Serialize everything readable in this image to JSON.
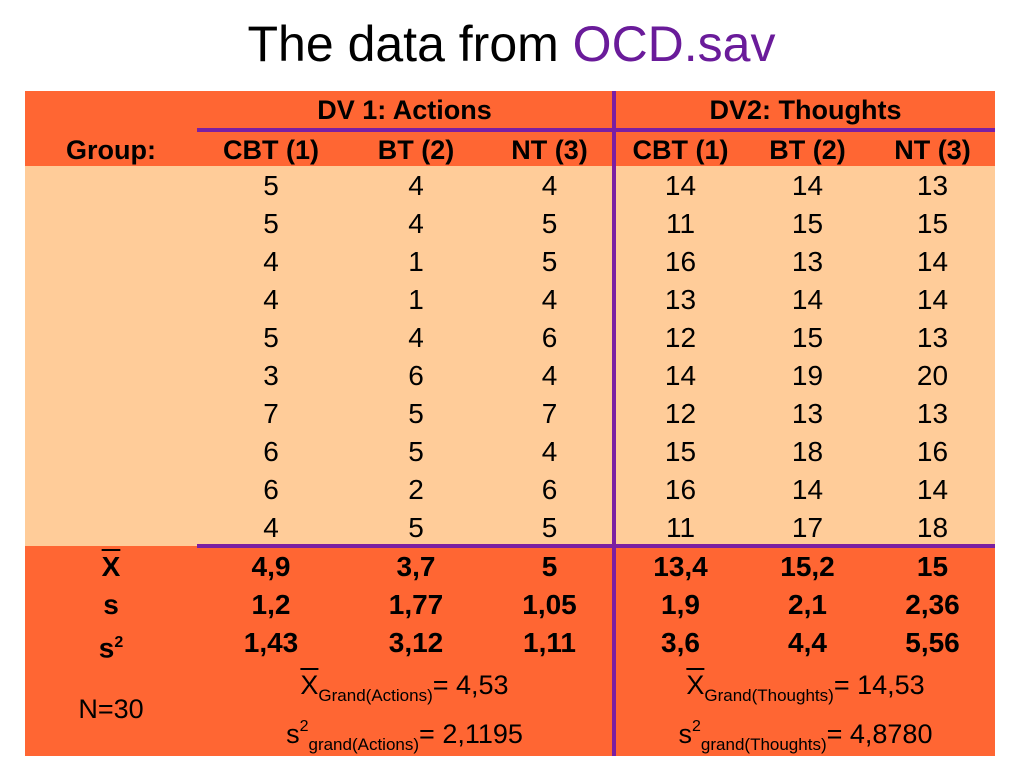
{
  "title": {
    "main": "The data from ",
    "accent": "OCD.sav"
  },
  "headers": {
    "group_label": "Group:",
    "dv1": "DV 1: Actions",
    "dv2": "DV2: Thoughts",
    "columns": [
      "CBT (1)",
      "BT (2)",
      "NT (3)",
      "CBT (1)",
      "BT (2)",
      "NT (3)"
    ]
  },
  "rows": [
    [
      "5",
      "4",
      "4",
      "14",
      "14",
      "13"
    ],
    [
      "5",
      "4",
      "5",
      "11",
      "15",
      "15"
    ],
    [
      "4",
      "1",
      "5",
      "16",
      "13",
      "14"
    ],
    [
      "4",
      "1",
      "4",
      "13",
      "14",
      "14"
    ],
    [
      "5",
      "4",
      "6",
      "12",
      "15",
      "13"
    ],
    [
      "3",
      "6",
      "4",
      "14",
      "19",
      "20"
    ],
    [
      "7",
      "5",
      "7",
      "12",
      "13",
      "13"
    ],
    [
      "6",
      "5",
      "4",
      "15",
      "18",
      "16"
    ],
    [
      "6",
      "2",
      "6",
      "16",
      "14",
      "14"
    ],
    [
      "4",
      "5",
      "5",
      "11",
      "17",
      "18"
    ]
  ],
  "stats": {
    "mean": {
      "label": "X",
      "values": [
        "4,9",
        "3,7",
        "5",
        "13,4",
        "15,2",
        "15"
      ]
    },
    "sd": {
      "label": "s",
      "values": [
        "1,2",
        "1,77",
        "1,05",
        "1,9",
        "2,1",
        "2,36"
      ]
    },
    "var": {
      "label": "s",
      "sup": "2",
      "values": [
        "1,43",
        "3,12",
        "1,11",
        "3,6",
        "4,4",
        "5,56"
      ]
    }
  },
  "footer": {
    "n": "N=30",
    "grand_mean_actions": {
      "x": "X",
      "sub": "Grand(Actions)",
      "value": "= 4,53"
    },
    "grand_var_actions": {
      "s": "s",
      "sup": "2",
      "sub": "grand(Actions)",
      "value": "= 2,1195"
    },
    "grand_mean_thoughts": {
      "x": "X",
      "sub": "Grand(Thoughts)",
      "value": "= 14,53"
    },
    "grand_var_thoughts": {
      "s": "s",
      "sup": "2",
      "sub": "grand(Thoughts)",
      "value": "= 4,8780"
    }
  }
}
